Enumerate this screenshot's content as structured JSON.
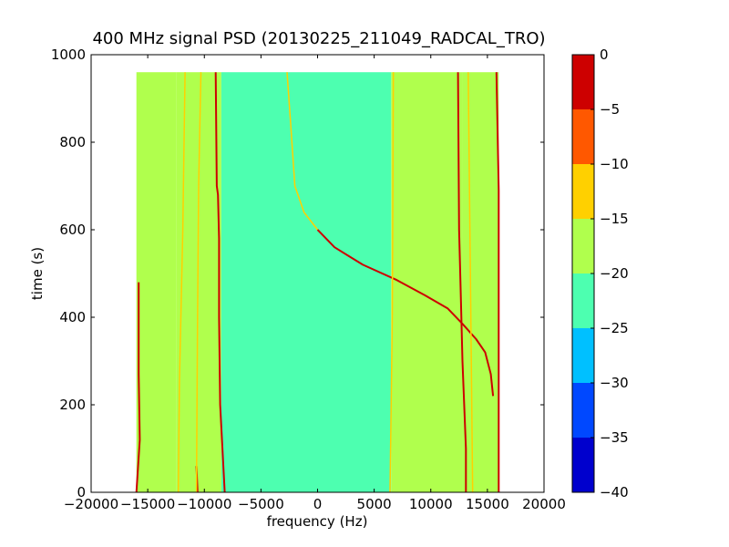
{
  "chart_data": {
    "type": "heatmap",
    "title": "400 MHz signal PSD (20130225_211049_RADCAL_TRO)",
    "xlabel": "frequency (Hz)",
    "ylabel": "time (s)",
    "xlim": [
      -20000,
      20000
    ],
    "ylim": [
      0,
      1000
    ],
    "xticks": [
      -20000,
      -15000,
      -10000,
      -5000,
      0,
      5000,
      10000,
      15000,
      20000
    ],
    "yticks": [
      0,
      200,
      400,
      600,
      800,
      1000
    ],
    "data_extent": {
      "freq": [
        -16000,
        16000
      ],
      "time": [
        0,
        960
      ]
    },
    "colorbar": {
      "ticks": [
        0,
        -5,
        -10,
        -15,
        -20,
        -25,
        -30,
        -35,
        -40
      ],
      "levels": [
        {
          "range": [
            -40,
            -35
          ],
          "color": "#0000cd"
        },
        {
          "range": [
            -35,
            -30
          ],
          "color": "#0048ff"
        },
        {
          "range": [
            -30,
            -25
          ],
          "color": "#00c0ff"
        },
        {
          "range": [
            -25,
            -20
          ],
          "color": "#4dffb0"
        },
        {
          "range": [
            -20,
            -15
          ],
          "color": "#b0ff4d"
        },
        {
          "range": [
            -15,
            -10
          ],
          "color": "#ffd000"
        },
        {
          "range": [
            -10,
            -5
          ],
          "color": "#ff5800"
        },
        {
          "range": [
            -5,
            0
          ],
          "color": "#cd0000"
        }
      ]
    },
    "regions": [
      {
        "freq": [
          -16000,
          -12500
        ],
        "level": -17.5
      },
      {
        "freq": [
          -12500,
          -8500
        ],
        "level": -19
      },
      {
        "freq": [
          -8500,
          6500
        ],
        "level": -21
      },
      {
        "freq": [
          6500,
          12800
        ],
        "level": -19
      },
      {
        "freq": [
          12800,
          16000
        ],
        "level": -17.5
      }
    ],
    "traces": [
      {
        "level": -2.5,
        "points": [
          [
            -16000,
            0
          ],
          [
            -15700,
            120
          ],
          [
            -15800,
            270
          ],
          [
            -15800,
            480
          ]
        ]
      },
      {
        "level": -12.5,
        "points": [
          [
            -12300,
            0
          ],
          [
            -12200,
            250
          ],
          [
            -11900,
            600
          ],
          [
            -11700,
            960
          ]
        ]
      },
      {
        "level": -2.5,
        "points": [
          [
            -10600,
            0
          ],
          [
            -10700,
            60
          ]
        ]
      },
      {
        "level": -12.5,
        "points": [
          [
            -10700,
            0
          ],
          [
            -10600,
            400
          ],
          [
            -10500,
            700
          ],
          [
            -10300,
            960
          ]
        ]
      },
      {
        "level": -2.5,
        "points": [
          [
            -8200,
            0
          ],
          [
            -8600,
            200
          ],
          [
            -8700,
            400
          ],
          [
            -8700,
            580
          ],
          [
            -8800,
            680
          ],
          [
            -8900,
            700
          ],
          [
            -9000,
            960
          ]
        ]
      },
      {
        "level": -12.5,
        "points": [
          [
            -2700,
            960
          ],
          [
            -2400,
            850
          ],
          [
            -2000,
            700
          ],
          [
            -1200,
            640
          ],
          [
            0,
            600
          ]
        ]
      },
      {
        "level": -2.5,
        "points": [
          [
            0,
            600
          ],
          [
            1500,
            560
          ],
          [
            4000,
            520
          ],
          [
            7000,
            485
          ],
          [
            9500,
            450
          ],
          [
            11500,
            420
          ],
          [
            12800,
            385
          ],
          [
            14000,
            350
          ],
          [
            14800,
            320
          ],
          [
            15300,
            270
          ],
          [
            15500,
            220
          ]
        ]
      },
      {
        "level": -12.5,
        "points": [
          [
            6400,
            0
          ],
          [
            6600,
            400
          ],
          [
            6700,
            960
          ]
        ]
      },
      {
        "level": -2.5,
        "points": [
          [
            13100,
            0
          ],
          [
            13100,
            100
          ],
          [
            12800,
            300
          ],
          [
            12700,
            400
          ],
          [
            12500,
            600
          ],
          [
            12400,
            960
          ]
        ]
      },
      {
        "level": -12.5,
        "points": [
          [
            13700,
            0
          ],
          [
            13500,
            500
          ],
          [
            13300,
            960
          ]
        ]
      },
      {
        "level": -2.5,
        "points": [
          [
            16000,
            0
          ],
          [
            16000,
            690
          ],
          [
            15800,
            960
          ]
        ]
      }
    ]
  }
}
